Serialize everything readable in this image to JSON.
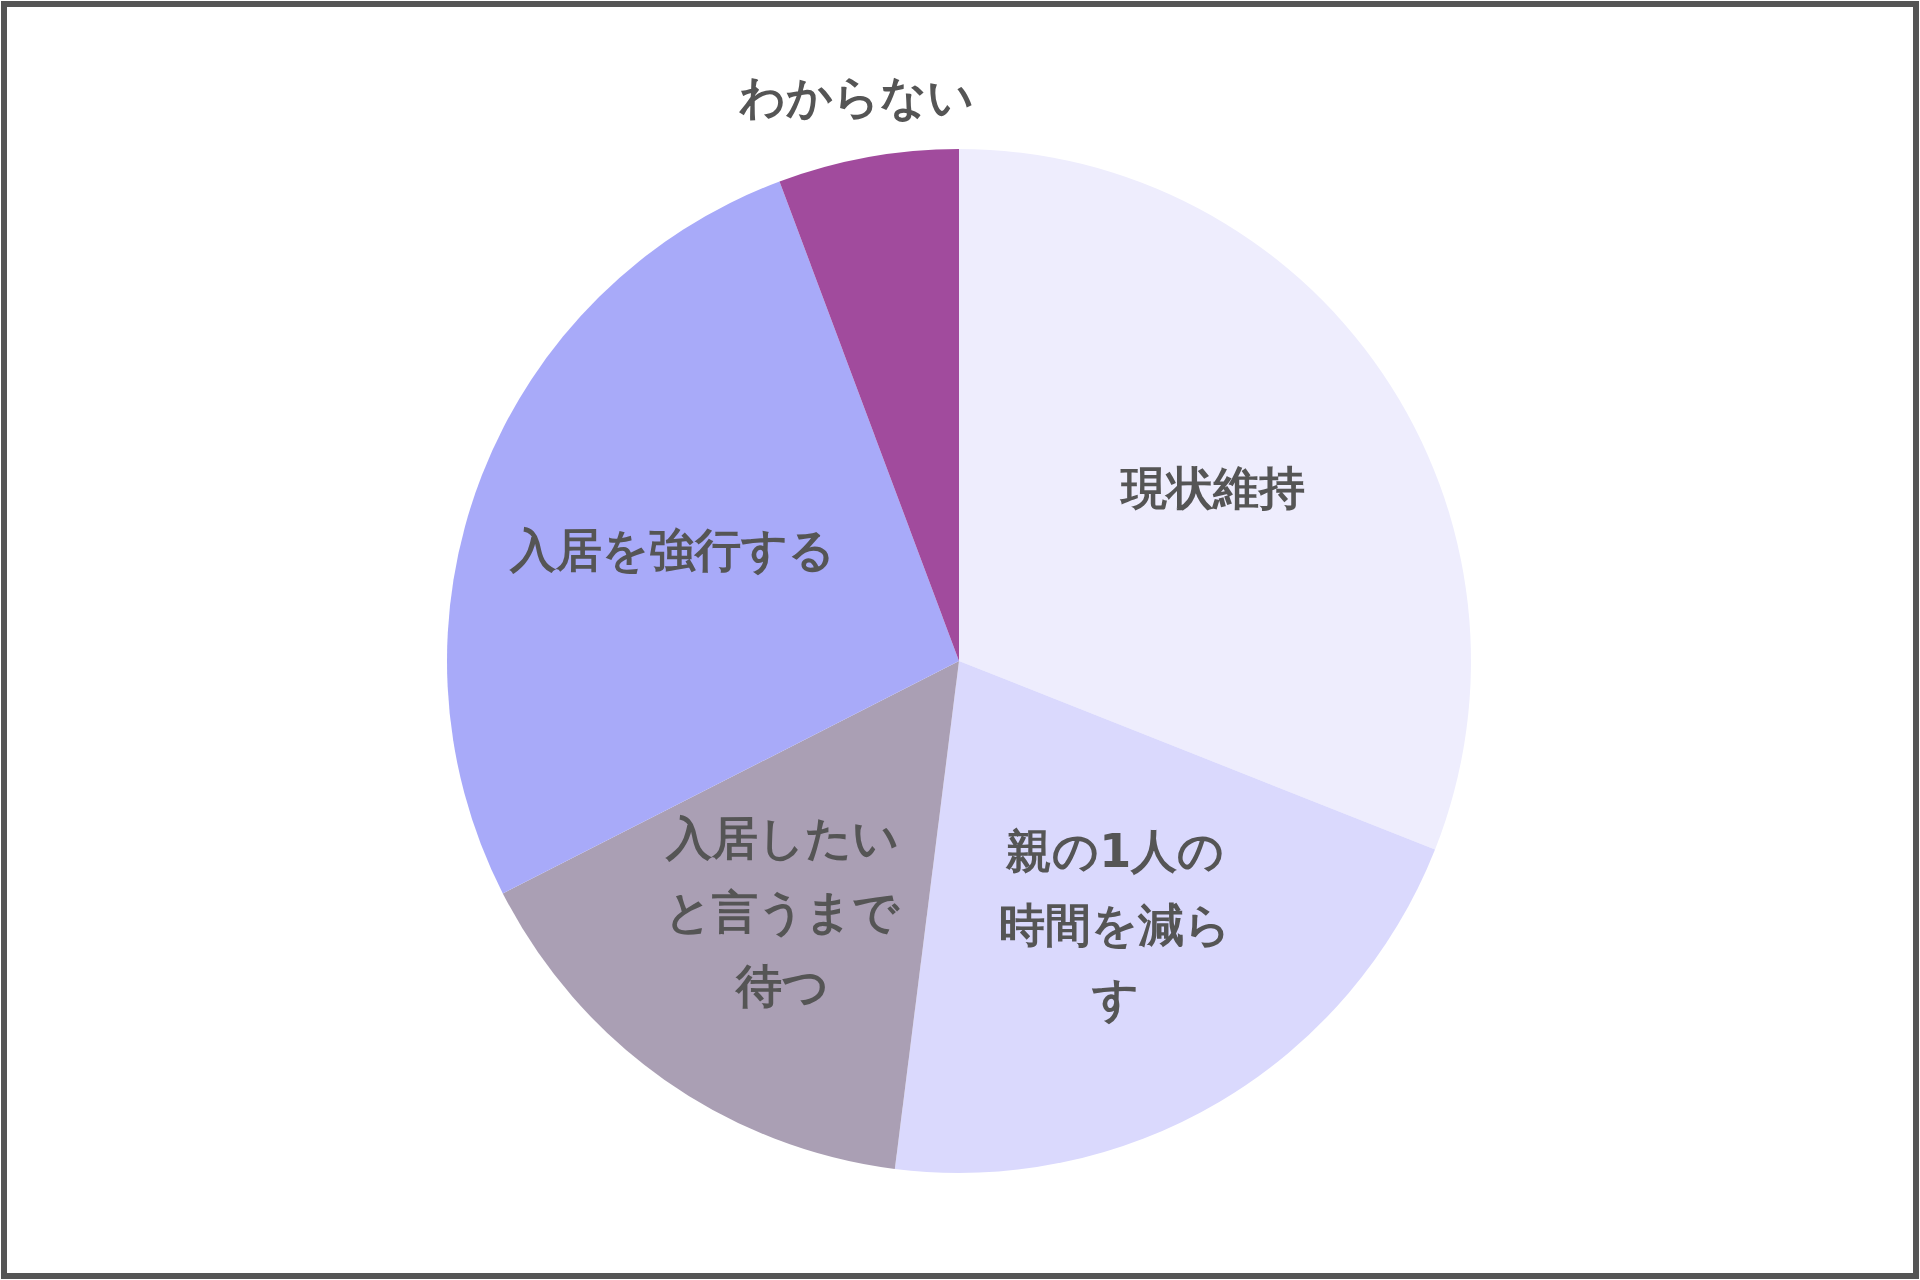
{
  "chart_data": {
    "type": "pie",
    "categories": [
      "現状維持",
      "親の1人の時間を減らす",
      "入居したいと言うまで待つ",
      "入居を強行する",
      "わからない"
    ],
    "values": [
      31,
      21,
      15.5,
      26.8,
      5.7
    ],
    "colors": [
      "#eeedfd",
      "#dad9fd",
      "#aa9fb4",
      "#a8aaf9",
      "#a14b9d"
    ]
  }
}
